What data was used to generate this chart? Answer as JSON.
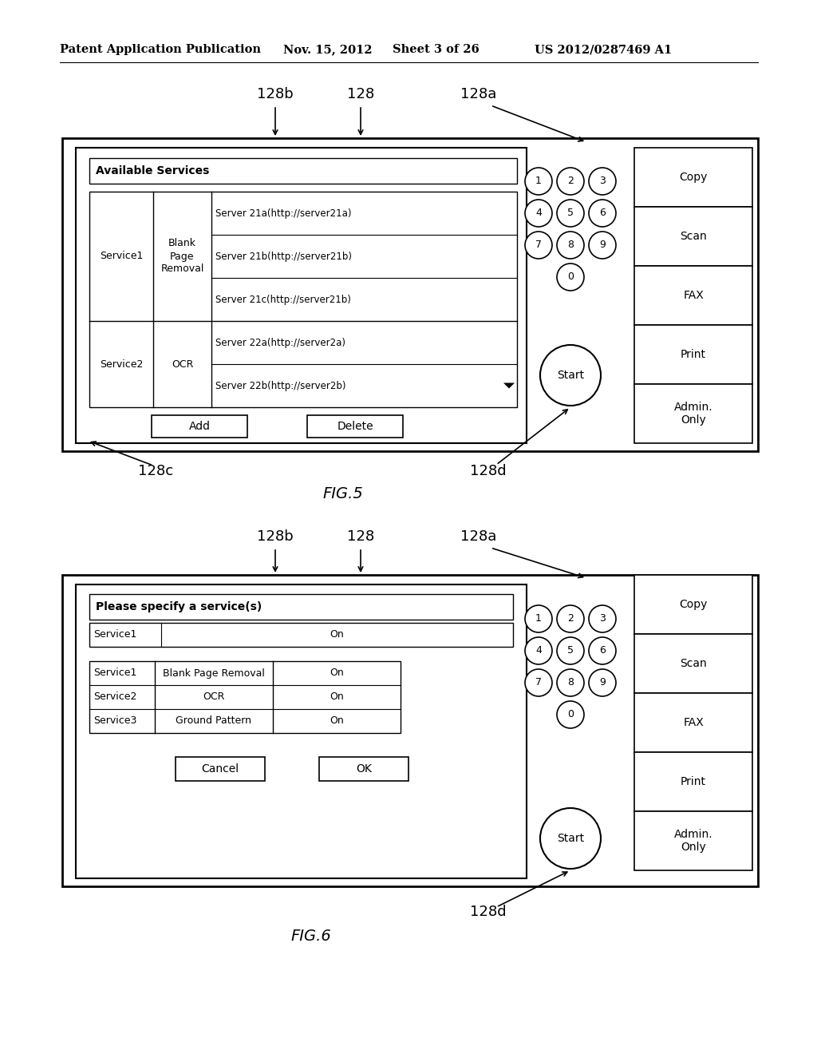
{
  "bg_color": "#ffffff",
  "header_text": "Patent Application Publication",
  "header_date": "Nov. 15, 2012",
  "header_sheet": "Sheet 3 of 26",
  "header_patent": "US 2012/0287469 A1",
  "fig5_label": "FIG.5",
  "fig6_label": "FIG.6",
  "fig5_title": "Available Services",
  "fig6_title": "Please specify a service(s)",
  "buttons_right": [
    "Copy",
    "Scan",
    "FAX",
    "Print",
    "Admin.\nOnly"
  ],
  "numpad_keys": [
    "1",
    "2",
    "3",
    "4",
    "5",
    "6",
    "7",
    "8",
    "9",
    "0"
  ],
  "fig5_service1_col1": "Service1",
  "fig5_service1_col2": "Blank\nPage\nRemoval",
  "fig5_service1_servers": [
    "Server 21a(http://server21a)",
    "Server 21b(http://server21b)",
    "Server 21c(http://server21b)"
  ],
  "fig5_service2_col1": "Service2",
  "fig5_service2_col2": "OCR",
  "fig5_service2_servers": [
    "Server 22a(http://server2a)",
    "Server 22b(http://server2b)"
  ],
  "fig5_btn1": "Add",
  "fig5_btn2": "Delete",
  "fig6_service1_label": "Service1",
  "fig6_service1_val": "On",
  "fig6_rows": [
    [
      "Service1",
      "Blank Page Removal",
      "On"
    ],
    [
      "Service2",
      "OCR",
      "On"
    ],
    [
      "Service3",
      "Ground Pattern",
      "On"
    ]
  ],
  "fig6_btn1": "Cancel",
  "fig6_btn2": "OK"
}
